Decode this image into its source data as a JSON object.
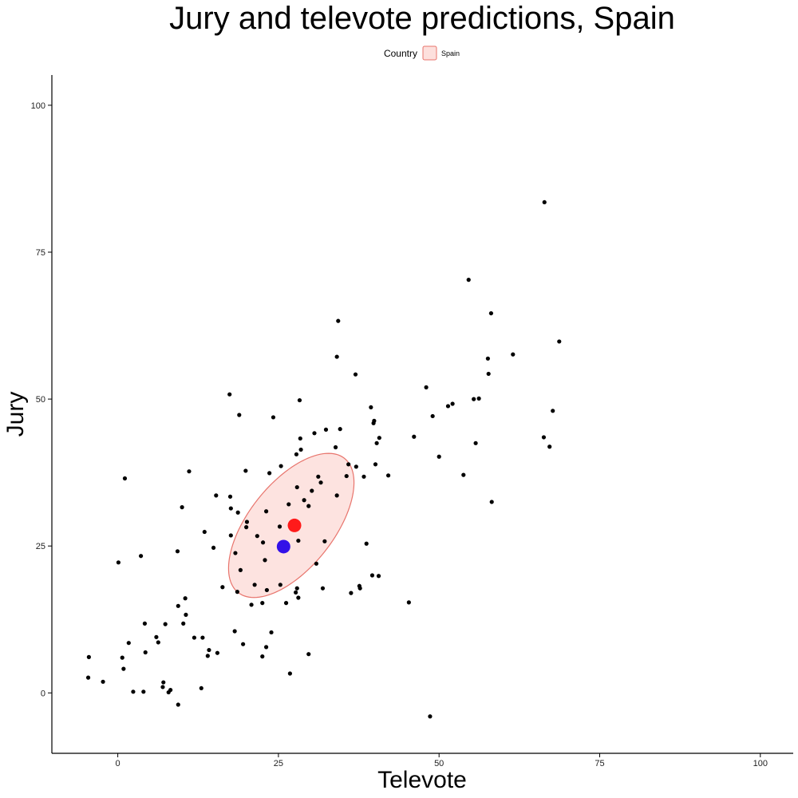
{
  "chart_data": {
    "type": "scatter",
    "title": "Jury and televote predictions, Spain",
    "xlabel": "Televote",
    "ylabel": "Jury",
    "xlim": [
      -10,
      105
    ],
    "ylim": [
      -10,
      105
    ],
    "xticks": [
      0,
      25,
      50,
      75,
      100
    ],
    "yticks": [
      0,
      25,
      50,
      75,
      100
    ],
    "grid": false,
    "legend": {
      "title": "Country",
      "placement": "top-center",
      "entries": [
        {
          "label": "Spain",
          "fill": "#fde0dd",
          "stroke": "#e8746c"
        }
      ]
    },
    "points": [
      {
        "x": -4.5,
        "y": 6.1
      },
      {
        "x": -4.6,
        "y": 2.6
      },
      {
        "x": -2.3,
        "y": 1.9
      },
      {
        "x": 0.1,
        "y": 22.2
      },
      {
        "x": 0.7,
        "y": 6.0
      },
      {
        "x": 0.9,
        "y": 4.1
      },
      {
        "x": 1.1,
        "y": 36.5
      },
      {
        "x": 1.7,
        "y": 8.5
      },
      {
        "x": 2.4,
        "y": 0.2
      },
      {
        "x": 3.6,
        "y": 23.3
      },
      {
        "x": 4.0,
        "y": 0.2
      },
      {
        "x": 4.2,
        "y": 11.8
      },
      {
        "x": 4.3,
        "y": 6.9
      },
      {
        "x": 6.0,
        "y": 9.5
      },
      {
        "x": 6.3,
        "y": 8.6
      },
      {
        "x": 7.0,
        "y": 1.0
      },
      {
        "x": 7.1,
        "y": 1.8
      },
      {
        "x": 7.4,
        "y": 11.7
      },
      {
        "x": 7.9,
        "y": 0.1
      },
      {
        "x": 8.2,
        "y": 0.5
      },
      {
        "x": 9.3,
        "y": 24.1
      },
      {
        "x": 9.4,
        "y": 14.8
      },
      {
        "x": 9.4,
        "y": -2.0
      },
      {
        "x": 10.0,
        "y": 31.6
      },
      {
        "x": 10.2,
        "y": 11.8
      },
      {
        "x": 10.5,
        "y": 16.1
      },
      {
        "x": 10.6,
        "y": 13.3
      },
      {
        "x": 11.1,
        "y": 37.7
      },
      {
        "x": 11.9,
        "y": 9.4
      },
      {
        "x": 13.0,
        "y": 0.8
      },
      {
        "x": 13.2,
        "y": 9.4
      },
      {
        "x": 13.5,
        "y": 27.4
      },
      {
        "x": 14.0,
        "y": 6.3
      },
      {
        "x": 14.2,
        "y": 7.3
      },
      {
        "x": 14.9,
        "y": 24.7
      },
      {
        "x": 15.3,
        "y": 33.6
      },
      {
        "x": 15.5,
        "y": 6.8
      },
      {
        "x": 16.3,
        "y": 18.0
      },
      {
        "x": 17.4,
        "y": 50.8
      },
      {
        "x": 17.5,
        "y": 33.4
      },
      {
        "x": 17.6,
        "y": 31.4
      },
      {
        "x": 17.6,
        "y": 26.8
      },
      {
        "x": 18.2,
        "y": 10.5
      },
      {
        "x": 18.3,
        "y": 23.8
      },
      {
        "x": 18.6,
        "y": 17.2
      },
      {
        "x": 18.7,
        "y": 30.7
      },
      {
        "x": 18.9,
        "y": 47.3
      },
      {
        "x": 19.1,
        "y": 20.9
      },
      {
        "x": 19.5,
        "y": 8.3
      },
      {
        "x": 19.9,
        "y": 37.8
      },
      {
        "x": 20.0,
        "y": 28.2
      },
      {
        "x": 20.1,
        "y": 29.1
      },
      {
        "x": 20.8,
        "y": 15.0
      },
      {
        "x": 21.3,
        "y": 18.4
      },
      {
        "x": 21.7,
        "y": 26.7
      },
      {
        "x": 22.5,
        "y": 6.2
      },
      {
        "x": 22.5,
        "y": 15.3
      },
      {
        "x": 22.6,
        "y": 25.6
      },
      {
        "x": 22.9,
        "y": 22.6
      },
      {
        "x": 23.1,
        "y": 7.8
      },
      {
        "x": 23.1,
        "y": 30.9
      },
      {
        "x": 23.2,
        "y": 17.5
      },
      {
        "x": 23.6,
        "y": 37.4
      },
      {
        "x": 23.9,
        "y": 10.3
      },
      {
        "x": 24.2,
        "y": 46.9
      },
      {
        "x": 25.2,
        "y": 28.3
      },
      {
        "x": 25.3,
        "y": 18.4
      },
      {
        "x": 25.4,
        "y": 38.6
      },
      {
        "x": 26.2,
        "y": 15.3
      },
      {
        "x": 26.6,
        "y": 32.1
      },
      {
        "x": 26.8,
        "y": 3.3
      },
      {
        "x": 27.7,
        "y": 17.1
      },
      {
        "x": 27.8,
        "y": 40.6
      },
      {
        "x": 27.9,
        "y": 35.0
      },
      {
        "x": 27.9,
        "y": 17.8
      },
      {
        "x": 28.1,
        "y": 25.9
      },
      {
        "x": 28.1,
        "y": 16.2
      },
      {
        "x": 28.3,
        "y": 49.8
      },
      {
        "x": 28.4,
        "y": 43.3
      },
      {
        "x": 28.5,
        "y": 41.4
      },
      {
        "x": 29.0,
        "y": 32.8
      },
      {
        "x": 29.7,
        "y": 6.6
      },
      {
        "x": 29.7,
        "y": 31.8
      },
      {
        "x": 30.2,
        "y": 34.4
      },
      {
        "x": 30.6,
        "y": 44.2
      },
      {
        "x": 30.9,
        "y": 22.0
      },
      {
        "x": 31.2,
        "y": 36.8
      },
      {
        "x": 31.6,
        "y": 35.8
      },
      {
        "x": 31.9,
        "y": 17.8
      },
      {
        "x": 32.2,
        "y": 25.8
      },
      {
        "x": 32.4,
        "y": 44.8
      },
      {
        "x": 33.9,
        "y": 41.8
      },
      {
        "x": 34.1,
        "y": 57.2
      },
      {
        "x": 34.1,
        "y": 33.6
      },
      {
        "x": 34.3,
        "y": 63.3
      },
      {
        "x": 34.6,
        "y": 44.9
      },
      {
        "x": 35.6,
        "y": 36.9
      },
      {
        "x": 35.9,
        "y": 38.9
      },
      {
        "x": 36.3,
        "y": 17.0
      },
      {
        "x": 37.0,
        "y": 54.2
      },
      {
        "x": 37.1,
        "y": 38.5
      },
      {
        "x": 37.6,
        "y": 18.2
      },
      {
        "x": 37.7,
        "y": 17.8
      },
      {
        "x": 38.3,
        "y": 36.8
      },
      {
        "x": 38.7,
        "y": 25.4
      },
      {
        "x": 39.4,
        "y": 48.6
      },
      {
        "x": 39.6,
        "y": 20.0
      },
      {
        "x": 39.8,
        "y": 45.9
      },
      {
        "x": 39.9,
        "y": 46.3
      },
      {
        "x": 40.1,
        "y": 38.9
      },
      {
        "x": 40.3,
        "y": 42.5
      },
      {
        "x": 40.6,
        "y": 19.9
      },
      {
        "x": 40.7,
        "y": 43.4
      },
      {
        "x": 42.1,
        "y": 37.0
      },
      {
        "x": 45.3,
        "y": 15.4
      },
      {
        "x": 46.1,
        "y": 43.6
      },
      {
        "x": 48.0,
        "y": 52.0
      },
      {
        "x": 48.6,
        "y": -4.0
      },
      {
        "x": 49.0,
        "y": 47.1
      },
      {
        "x": 50.0,
        "y": 40.2
      },
      {
        "x": 51.4,
        "y": 48.8
      },
      {
        "x": 52.1,
        "y": 49.2
      },
      {
        "x": 53.8,
        "y": 37.1
      },
      {
        "x": 54.6,
        "y": 70.3
      },
      {
        "x": 55.4,
        "y": 50.0
      },
      {
        "x": 55.7,
        "y": 42.5
      },
      {
        "x": 56.2,
        "y": 50.1
      },
      {
        "x": 57.6,
        "y": 56.9
      },
      {
        "x": 57.7,
        "y": 54.3
      },
      {
        "x": 58.1,
        "y": 64.6
      },
      {
        "x": 58.2,
        "y": 32.5
      },
      {
        "x": 61.5,
        "y": 57.6
      },
      {
        "x": 66.3,
        "y": 43.5
      },
      {
        "x": 66.4,
        "y": 83.5
      },
      {
        "x": 67.2,
        "y": 41.9
      },
      {
        "x": 67.7,
        "y": 48.0
      },
      {
        "x": 68.7,
        "y": 59.8
      }
    ],
    "highlight_points": [
      {
        "name": "red",
        "x": 27.5,
        "y": 28.5,
        "color": "#ff1a1a"
      },
      {
        "name": "blue",
        "x": 25.8,
        "y": 24.9,
        "color": "#3311e8"
      }
    ],
    "ellipse": {
      "group": "Spain",
      "center": [
        27.0,
        28.5
      ],
      "half_major_x": [
        8.5,
        11.2
      ],
      "half_minor_x": [
        -4.8,
        5.0
      ],
      "fill": "#fde0dd",
      "stroke": "#e8746c"
    }
  }
}
